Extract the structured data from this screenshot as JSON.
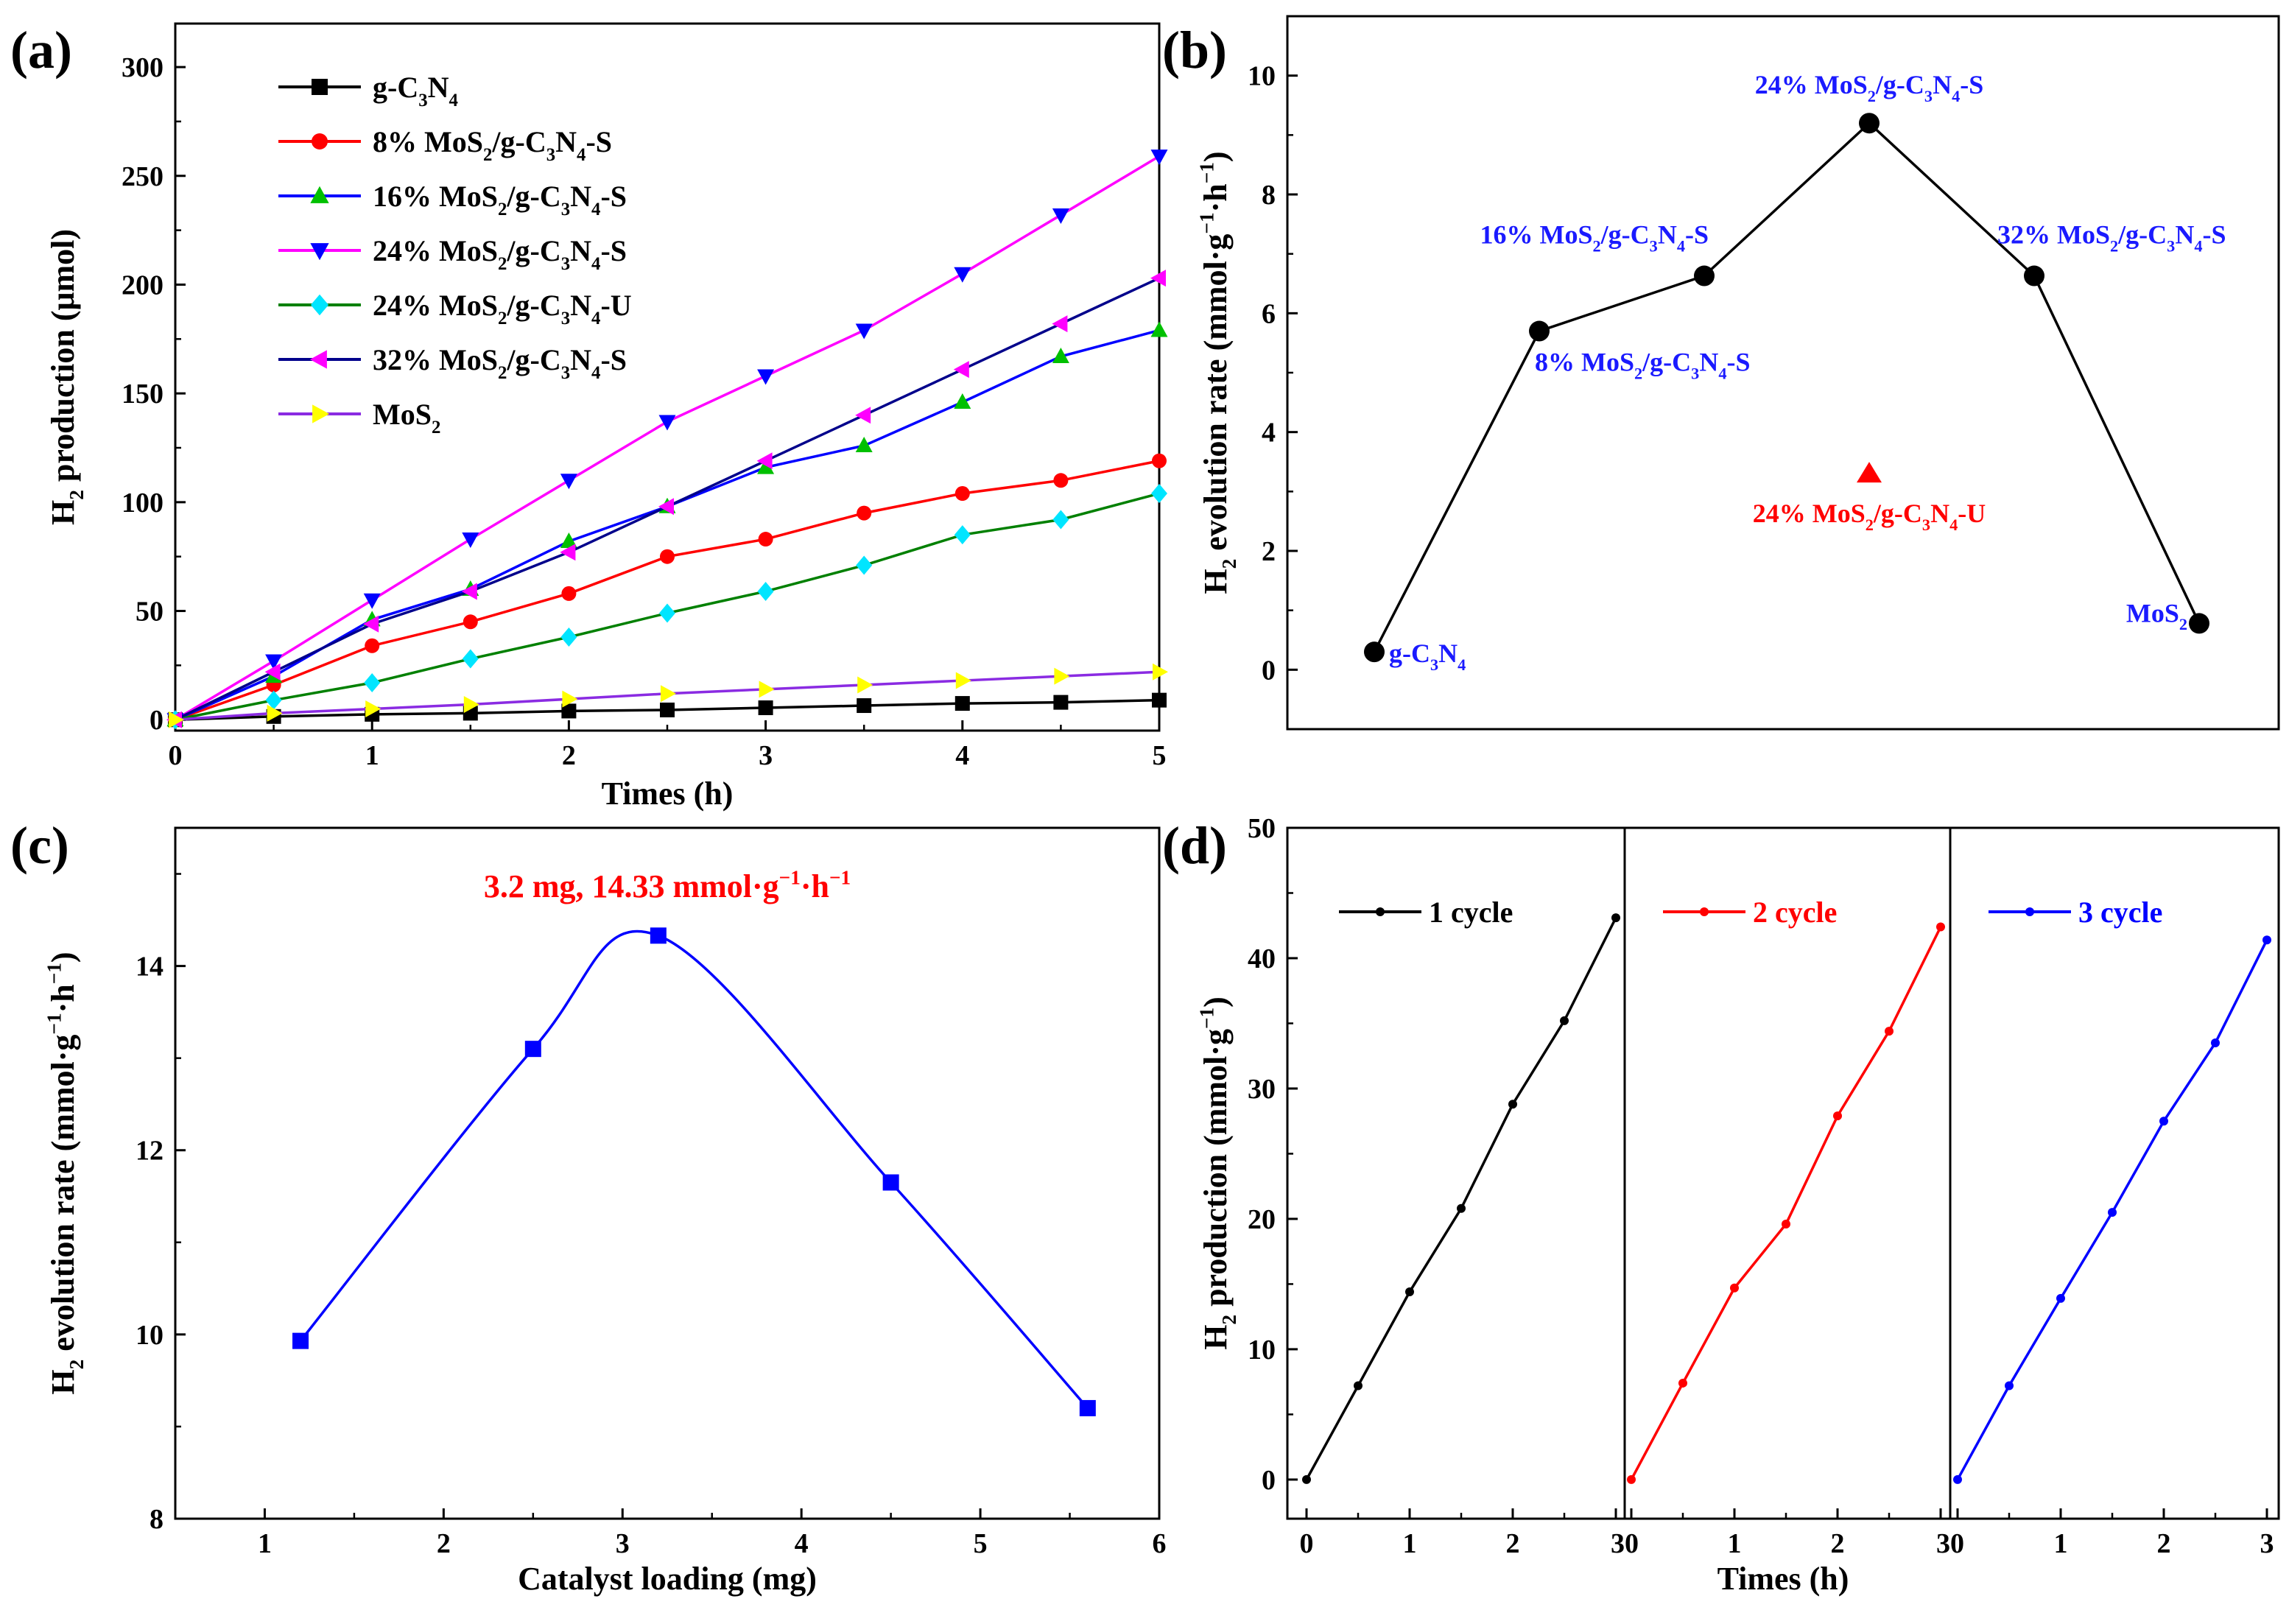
{
  "chart_data": [
    {
      "panel": "(a)",
      "type": "line",
      "xlabel": "Times (h)",
      "ylabel": "H2 production (μmol)",
      "ylabel_parts": [
        "H",
        "2",
        " production (μmol)"
      ],
      "xlim": [
        0,
        5
      ],
      "ylim": [
        -5,
        320
      ],
      "xticks": [
        0,
        1,
        2,
        3,
        4,
        5
      ],
      "yticks": [
        0,
        50,
        100,
        150,
        200,
        250,
        300
      ],
      "legend_position": "top-left",
      "x": [
        0,
        0.5,
        1,
        1.5,
        2,
        2.5,
        3,
        3.5,
        4,
        4.5,
        5
      ],
      "series": [
        {
          "name": "g-C3N4",
          "label": [
            [
              "g-C",
              0
            ],
            [
              "3",
              1
            ],
            [
              "N",
              0
            ],
            [
              "4",
              1
            ]
          ],
          "color": "#000000",
          "marker": "square",
          "values": [
            0,
            1.5,
            2.5,
            3,
            4,
            4.5,
            5.5,
            6.5,
            7.5,
            8,
            9
          ]
        },
        {
          "name": "8% MoS2/g-C3N4-S",
          "label": [
            [
              "8% MoS",
              0
            ],
            [
              "2",
              1
            ],
            [
              "/g-C",
              0
            ],
            [
              "3",
              1
            ],
            [
              "N",
              0
            ],
            [
              "4",
              1
            ],
            [
              "-S",
              0
            ]
          ],
          "color": "#ff0000",
          "marker": "circle",
          "values": [
            0,
            16,
            34,
            45,
            58,
            75,
            83,
            95,
            104,
            110,
            119
          ]
        },
        {
          "name": "16% MoS2/g-C3N4-S",
          "label": [
            [
              "16% MoS",
              0
            ],
            [
              "2",
              1
            ],
            [
              "/g-C",
              0
            ],
            [
              "3",
              1
            ],
            [
              "N",
              0
            ],
            [
              "4",
              1
            ],
            [
              "-S",
              0
            ]
          ],
          "color": "#0000ff",
          "marker": "triangle-up",
          "marker_color": "#00c000",
          "values": [
            0,
            20,
            46,
            60,
            82,
            98,
            116,
            126,
            146,
            167,
            179
          ]
        },
        {
          "name": "24% MoS2/g-C3N4-S",
          "label": [
            [
              "24% MoS",
              0
            ],
            [
              "2",
              1
            ],
            [
              "/g-C",
              0
            ],
            [
              "3",
              1
            ],
            [
              "N",
              0
            ],
            [
              "4",
              1
            ],
            [
              "-S",
              0
            ]
          ],
          "color": "#ff00ff",
          "marker": "triangle-down",
          "marker_color": "#0000ff",
          "values": [
            0,
            27,
            55,
            83,
            110,
            137,
            158,
            179,
            205,
            232,
            259
          ]
        },
        {
          "name": "24% MoS2/g-C3N4-U",
          "label": [
            [
              "24% MoS",
              0
            ],
            [
              "2",
              1
            ],
            [
              "/g-C",
              0
            ],
            [
              "3",
              1
            ],
            [
              "N",
              0
            ],
            [
              "4",
              1
            ],
            [
              "-U",
              0
            ]
          ],
          "color": "#008000",
          "marker": "diamond",
          "marker_color": "#00e5ff",
          "values": [
            0,
            9,
            17,
            28,
            38,
            49,
            59,
            71,
            85,
            92,
            104
          ]
        },
        {
          "name": "32% MoS2/g-C3N4-S",
          "label": [
            [
              "32% MoS",
              0
            ],
            [
              "2",
              1
            ],
            [
              "/g-C",
              0
            ],
            [
              "3",
              1
            ],
            [
              "N",
              0
            ],
            [
              "4",
              1
            ],
            [
              "-S",
              0
            ]
          ],
          "color": "#00008b",
          "marker": "triangle-left",
          "marker_color": "#ff00ff",
          "values": [
            0,
            22,
            44,
            59,
            77,
            98,
            119,
            140,
            161,
            182,
            203
          ]
        },
        {
          "name": "MoS2",
          "label": [
            [
              "MoS",
              0
            ],
            [
              "2",
              1
            ]
          ],
          "color": "#8a2be2",
          "marker": "triangle-right",
          "marker_color": "#ffff00",
          "values": [
            0,
            3,
            5,
            7,
            9.5,
            12,
            14,
            16,
            18,
            20,
            22
          ]
        }
      ]
    },
    {
      "panel": "(b)",
      "type": "line",
      "xlabel": "",
      "ylabel": "H2 evolution rate (mmol·g−1·h−1)",
      "ylabel_parts": [
        [
          "H",
          0
        ],
        [
          "2",
          1
        ],
        [
          " evolution rate (mmol·g",
          0
        ],
        [
          "−1",
          2
        ],
        [
          "·h",
          0
        ],
        [
          "−1",
          2
        ],
        [
          ")",
          0
        ]
      ],
      "ylim": [
        -1,
        11
      ],
      "yticks": [
        0,
        2,
        4,
        6,
        8,
        10
      ],
      "points": [
        {
          "name": "g-C3N4",
          "label": [
            [
              "g-C",
              0
            ],
            [
              "3",
              1
            ],
            [
              "N",
              0
            ],
            [
              "4",
              1
            ]
          ],
          "value": 0.3
        },
        {
          "name": "8% MoS2/g-C3N4-S",
          "label": [
            [
              "8% MoS",
              0
            ],
            [
              "2",
              1
            ],
            [
              "/g-C",
              0
            ],
            [
              "3",
              1
            ],
            [
              "N",
              0
            ],
            [
              "4",
              1
            ],
            [
              "-S",
              0
            ]
          ],
          "value": 5.7
        },
        {
          "name": "16% MoS2/g-C3N4-S",
          "label": [
            [
              "16% MoS",
              0
            ],
            [
              "2",
              1
            ],
            [
              "/g-C",
              0
            ],
            [
              "3",
              1
            ],
            [
              "N",
              0
            ],
            [
              "4",
              1
            ],
            [
              "-S",
              0
            ]
          ],
          "value": 6.63
        },
        {
          "name": "24% MoS2/g-C3N4-S",
          "label": [
            [
              "24% MoS",
              0
            ],
            [
              "2",
              1
            ],
            [
              "/g-C",
              0
            ],
            [
              "3",
              1
            ],
            [
              "N",
              0
            ],
            [
              "4",
              1
            ],
            [
              "-S",
              0
            ]
          ],
          "value": 9.2
        },
        {
          "name": "32% MoS2/g-C3N4-S",
          "label": [
            [
              "32% MoS",
              0
            ],
            [
              "2",
              1
            ],
            [
              "/g-C",
              0
            ],
            [
              "3",
              1
            ],
            [
              "N",
              0
            ],
            [
              "4",
              1
            ],
            [
              "-S",
              0
            ]
          ],
          "value": 6.63
        },
        {
          "name": "MoS2",
          "label": [
            [
              "MoS",
              0
            ],
            [
              "2",
              1
            ]
          ],
          "value": 0.78
        }
      ],
      "extra_point": {
        "name": "24% MoS2/g-C3N4-U",
        "label": [
          [
            "24% MoS",
            0
          ],
          [
            "2",
            1
          ],
          [
            "/g-C",
            0
          ],
          [
            "3",
            1
          ],
          [
            "N",
            0
          ],
          [
            "4",
            1
          ],
          [
            "-U",
            0
          ]
        ],
        "value": 3.3,
        "color": "#ff0000"
      }
    },
    {
      "panel": "(c)",
      "type": "line",
      "xlabel": "Catalyst loading (mg)",
      "ylabel": "H2 evolution rate (mmol·g−1·h−1)",
      "ylabel_parts": [
        [
          "H",
          0
        ],
        [
          "2",
          1
        ],
        [
          " evolution rate (mmol·g",
          0
        ],
        [
          "−1",
          2
        ],
        [
          "·h",
          0
        ],
        [
          "−1",
          2
        ],
        [
          ")",
          0
        ]
      ],
      "xlim": [
        0.5,
        6
      ],
      "ylim": [
        8,
        15.5
      ],
      "xticks": [
        1,
        2,
        3,
        4,
        5,
        6
      ],
      "yticks": [
        8,
        10,
        12,
        14
      ],
      "x": [
        1.2,
        2.5,
        3.2,
        4.5,
        5.6
      ],
      "values": [
        9.93,
        13.1,
        14.33,
        11.65,
        9.2
      ],
      "color": "#0000ff",
      "annotation": "3.2 mg, 14.33 mmol·g−1·h−1",
      "annotation_parts": [
        [
          "3.2 mg, 14.33 mmol·g",
          0
        ],
        [
          "−1",
          2
        ],
        [
          "·h",
          0
        ],
        [
          "−1",
          2
        ]
      ]
    },
    {
      "panel": "(d)",
      "type": "line",
      "xlabel": "Times (h)",
      "ylabel": "H2 production (mmol·g−1)",
      "ylabel_parts": [
        [
          "H",
          0
        ],
        [
          "2",
          1
        ],
        [
          " production (mmol·g",
          0
        ],
        [
          "−1",
          2
        ],
        [
          ")",
          0
        ]
      ],
      "ylim": [
        -3,
        50
      ],
      "yticks": [
        0,
        10,
        20,
        30,
        40,
        50
      ],
      "xticks_per_cycle": [
        "0",
        "1",
        "2",
        "3"
      ],
      "x": [
        0,
        0.5,
        1,
        1.5,
        2,
        2.5,
        3
      ],
      "series": [
        {
          "name": "1 cycle",
          "color": "#000000",
          "values": [
            0,
            7.2,
            14.4,
            20.8,
            28.8,
            35.2,
            43.1
          ]
        },
        {
          "name": "2 cycle",
          "color": "#ff0000",
          "values": [
            0,
            7.4,
            14.7,
            19.6,
            27.9,
            34.4,
            42.4
          ]
        },
        {
          "name": "3 cycle",
          "color": "#0000ff",
          "values": [
            0,
            7.2,
            13.9,
            20.5,
            27.5,
            33.5,
            41.4
          ]
        }
      ]
    }
  ]
}
